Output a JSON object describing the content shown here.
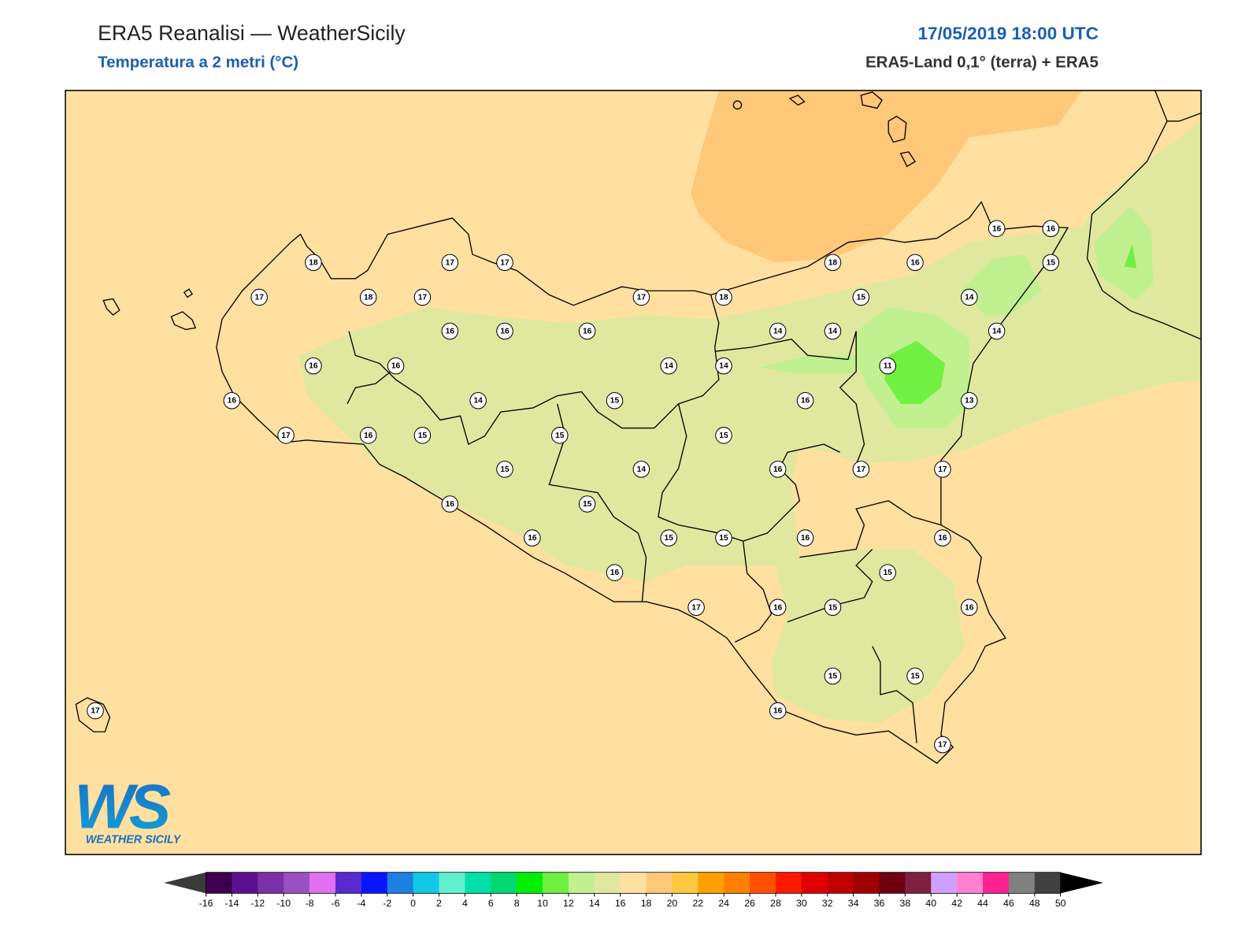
{
  "header": {
    "title": "ERA5 Reanalisi — WeatherSicily",
    "subtitle": "Temperatura a 2 metri (°C)",
    "datetime": "17/05/2019 18:00 UTC",
    "source": "ERA5-Land 0,1° (terra) + ERA5"
  },
  "map": {
    "stations": [
      18,
      17,
      17,
      17,
      18,
      17,
      17,
      18,
      18,
      16,
      16,
      16,
      15,
      15,
      14,
      16,
      16,
      16,
      14,
      14,
      14,
      16,
      16,
      14,
      14,
      11,
      16,
      14,
      15,
      16,
      13,
      17,
      16,
      15,
      15,
      15,
      15,
      14,
      16,
      17,
      17,
      16,
      15,
      16,
      15,
      15,
      16,
      16,
      16,
      15,
      17,
      16,
      15,
      16,
      15,
      15,
      16,
      17,
      17
    ]
  },
  "colorbar": {
    "ticks": [
      -16,
      -14,
      -12,
      -10,
      -8,
      -6,
      -4,
      -2,
      0,
      2,
      4,
      6,
      8,
      10,
      12,
      14,
      16,
      18,
      20,
      22,
      24,
      26,
      28,
      30,
      32,
      34,
      36,
      38,
      40,
      42,
      44,
      46,
      48,
      50
    ],
    "colors": [
      "#3d0050",
      "#5c1090",
      "#7b30a8",
      "#9b50c0",
      "#e070f0",
      "#5a2ad0",
      "#0a14ff",
      "#1e80e0",
      "#10c8e8",
      "#60f0d0",
      "#00e0a8",
      "#00d870",
      "#00f000",
      "#70f040",
      "#c0f090",
      "#e0e8a0",
      "#ffe0a0",
      "#ffc878",
      "#ffc840",
      "#ffa000",
      "#ff8000",
      "#ff5000",
      "#ff1800",
      "#e00000",
      "#c00000",
      "#a00000",
      "#700010",
      "#802040",
      "#d0a0ff",
      "#ff80d0",
      "#ff2090",
      "#808080",
      "#404040"
    ],
    "under_color": "#3a3a3a",
    "over_color": "#000000"
  },
  "logo": {
    "mark": "WS",
    "text": "WEATHER SICILY"
  }
}
